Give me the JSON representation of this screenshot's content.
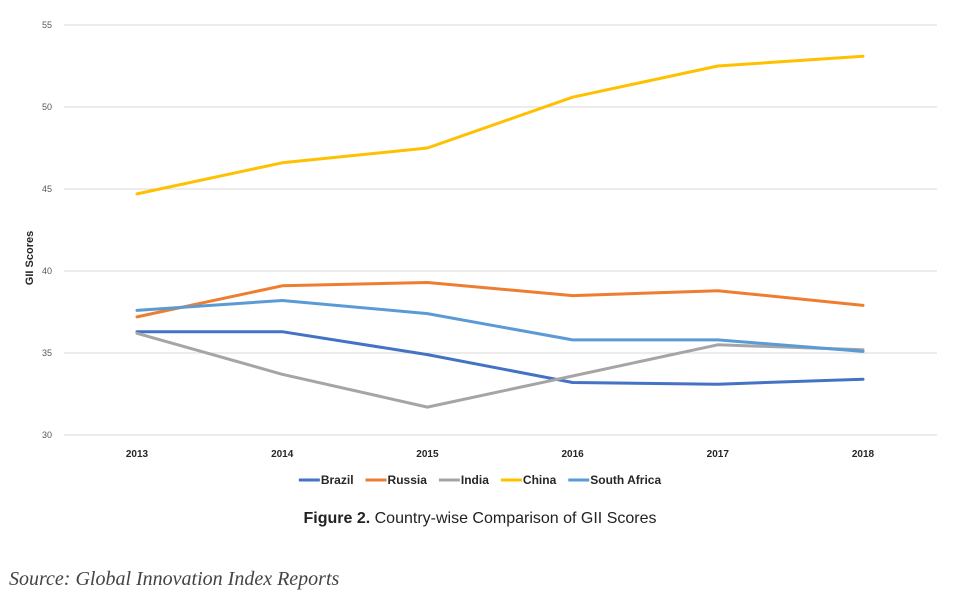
{
  "chart_data": {
    "type": "line",
    "ylabel": "GII Scores",
    "xlabel": "",
    "ylim": [
      30,
      55
    ],
    "yticks": [
      30,
      35,
      40,
      45,
      50,
      55
    ],
    "grid": true,
    "legend_position": "bottom",
    "categories": [
      "2013",
      "2014",
      "2015",
      "2016",
      "2017",
      "2018"
    ],
    "series": [
      {
        "name": "Brazil",
        "color": "#4472C4",
        "values": [
          36.3,
          36.3,
          34.9,
          33.2,
          33.1,
          33.4
        ]
      },
      {
        "name": "Russia",
        "color": "#ED7D31",
        "values": [
          37.2,
          39.1,
          39.3,
          38.5,
          38.8,
          37.9
        ]
      },
      {
        "name": "India",
        "color": "#A5A5A5",
        "values": [
          36.2,
          33.7,
          31.7,
          33.6,
          35.5,
          35.2
        ]
      },
      {
        "name": "China",
        "color": "#FFC000",
        "values": [
          44.7,
          46.6,
          47.5,
          50.6,
          52.5,
          53.1
        ]
      },
      {
        "name": "South Africa",
        "color": "#5B9BD5",
        "values": [
          37.6,
          38.2,
          37.4,
          35.8,
          35.8,
          35.1
        ]
      }
    ]
  },
  "caption": {
    "label": "Figure 2.",
    "text": " Country-wise Comparison of GII Scores"
  },
  "source": "Source: Global Innovation Index Reports"
}
